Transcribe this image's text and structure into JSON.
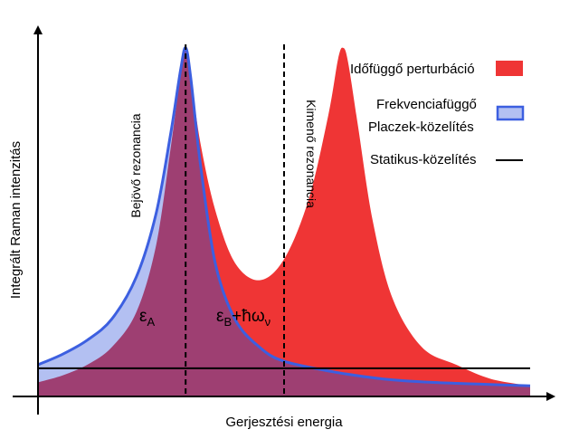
{
  "chart_data": {
    "type": "area",
    "title": "",
    "xlabel": "Gerjesztési energia",
    "ylabel": "Integrált Raman intenzitás",
    "xlim": [
      0,
      10
    ],
    "ylim": [
      0,
      1.0
    ],
    "grid": false,
    "legend_position": "right",
    "series": [
      {
        "name": "Időfüggő perturbáció",
        "color": "#ef3535",
        "legend_lines": [
          "Időfüggő perturbáció"
        ],
        "x": [
          0,
          0.5,
          1.0,
          1.5,
          2.0,
          2.4,
          2.7,
          2.9,
          3.0,
          3.1,
          3.3,
          3.6,
          4.0,
          4.5,
          5.0,
          5.5,
          5.9,
          6.1,
          6.2,
          6.3,
          6.5,
          6.8,
          7.2,
          7.8,
          8.5,
          9.2,
          10.0
        ],
        "values": [
          0.04,
          0.06,
          0.09,
          0.14,
          0.24,
          0.43,
          0.71,
          0.92,
          0.99,
          0.91,
          0.72,
          0.53,
          0.38,
          0.33,
          0.39,
          0.56,
          0.8,
          0.96,
          0.99,
          0.95,
          0.77,
          0.5,
          0.28,
          0.14,
          0.09,
          0.05,
          0.03
        ]
      },
      {
        "name": "Frekvenciafüggő Placzek-közelítés",
        "color": "#3c5fe0",
        "fill": "#b3c0f2",
        "legend_lines": [
          "Frekvenciafüggő",
          "Placzek-közelítés"
        ],
        "x": [
          0,
          0.5,
          1.0,
          1.5,
          2.0,
          2.4,
          2.7,
          2.9,
          3.0,
          3.1,
          3.3,
          3.6,
          4.0,
          4.5,
          5.0,
          6.0,
          7.0,
          8.0,
          9.0,
          10.0
        ],
        "values": [
          0.09,
          0.12,
          0.16,
          0.22,
          0.34,
          0.52,
          0.75,
          0.93,
          0.99,
          0.91,
          0.66,
          0.38,
          0.22,
          0.14,
          0.1,
          0.07,
          0.05,
          0.04,
          0.035,
          0.03
        ]
      },
      {
        "name": "Statikus-közelítés",
        "color": "#000000",
        "legend_lines": [
          "Statikus-közelítés"
        ],
        "x": [
          0,
          10
        ],
        "values": [
          0.08,
          0.08
        ]
      }
    ],
    "annotations": {
      "incoming": {
        "text": "Bejövő rezonancia",
        "x": 3.0
      },
      "outgoing": {
        "text": "Kimenő rezonancia",
        "x": 5.0
      },
      "eps_a": {
        "symbol": "ε",
        "sub": "A"
      },
      "eps_b": {
        "symbol": "ε",
        "sub": "B",
        "suffix": "+ħω",
        "sub2": "ν"
      }
    }
  }
}
